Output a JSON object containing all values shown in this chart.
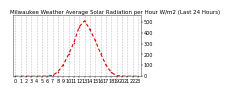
{
  "title": "Milwaukee Weather Average Solar Radiation per Hour W/m2 (Last 24 Hours)",
  "hours": [
    0,
    1,
    2,
    3,
    4,
    5,
    6,
    7,
    8,
    9,
    10,
    11,
    12,
    13,
    14,
    15,
    16,
    17,
    18,
    19,
    20,
    21,
    22,
    23
  ],
  "values": [
    0,
    0,
    0,
    0,
    0,
    0,
    1,
    8,
    40,
    105,
    200,
    310,
    455,
    510,
    430,
    330,
    210,
    105,
    35,
    6,
    1,
    0,
    0,
    0
  ],
  "line_color": "#dd0000",
  "bg_color": "#ffffff",
  "plot_bg": "#ffffff",
  "ylim": [
    0,
    560
  ],
  "xlim": [
    -0.5,
    23.5
  ],
  "y_ticks": [
    0,
    100,
    200,
    300,
    400,
    500
  ],
  "x_ticks": [
    0,
    1,
    2,
    3,
    4,
    5,
    6,
    7,
    8,
    9,
    10,
    11,
    12,
    13,
    14,
    15,
    16,
    17,
    18,
    19,
    20,
    21,
    22,
    23
  ],
  "grid_color": "#bbbbbb",
  "title_fontsize": 4,
  "tick_fontsize": 3.5
}
